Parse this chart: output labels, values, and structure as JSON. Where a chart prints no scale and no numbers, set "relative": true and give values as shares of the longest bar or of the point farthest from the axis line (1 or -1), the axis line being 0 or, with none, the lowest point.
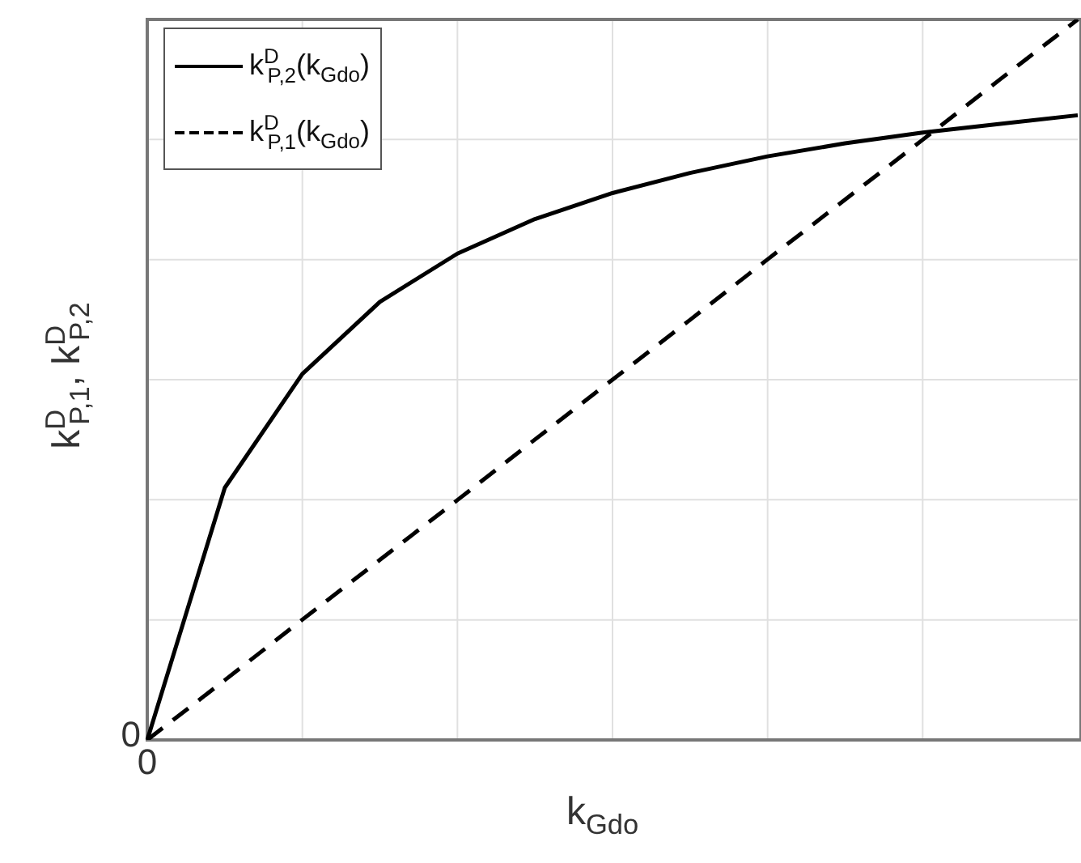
{
  "chart_data": {
    "type": "line",
    "relative": true,
    "xlabel": "k$_{Gdo}$",
    "ylabel": "k$^{D}$$_{P,1}$, k$^{D}$$_{P,2}$",
    "categories": [
      null,
      null,
      null,
      null,
      null,
      null,
      null,
      null,
      null,
      null,
      null,
      null,
      null
    ],
    "series": [
      {
        "name": "k$^{D}$$_{P,2}$(k$_{Gdo}$)",
        "color": "#000000",
        "line_style": "solid",
        "values": [
          0,
          0.35,
          0.508,
          0.608,
          0.675,
          0.723,
          0.759,
          0.787,
          0.81,
          0.828,
          0.843,
          0.855,
          0.867
        ]
      },
      {
        "name": "k$^{D}$$_{P,1}$(k$_{Gdo}$)",
        "color": "#000000",
        "line_style": "dashed",
        "values": [
          0,
          0.083,
          0.167,
          0.25,
          0.333,
          0.417,
          0.5,
          0.583,
          0.667,
          0.75,
          0.833,
          0.917,
          1
        ]
      }
    ],
    "annotations": [
      "0",
      "0"
    ],
    "grid": true,
    "legend": "top left",
    "marker": "none"
  }
}
